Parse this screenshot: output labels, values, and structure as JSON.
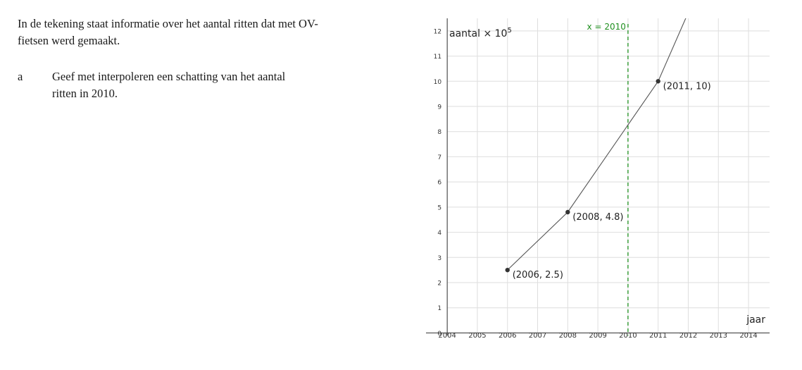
{
  "question": {
    "intro": "In de tekening staat informatie over het aantal ritten dat met OV-fietsen werd gemaakt.",
    "item_letter": "a",
    "item_text": "Geef met interpoleren een schatting van het aantal ritten in 2010."
  },
  "chart_data": {
    "type": "line",
    "title": "",
    "xlabel": "jaar",
    "ylabel_base": "aantal × 10",
    "ylabel_exponent": "5",
    "xlim": [
      2003.95,
      2014.7
    ],
    "ylim": [
      -0.1,
      12.5
    ],
    "grid": true,
    "x_ticks": [
      "2004",
      "2005",
      "2006",
      "2007",
      "2008",
      "2009",
      "2010",
      "2011",
      "2012",
      "2013",
      "2014"
    ],
    "y_ticks": [
      "0",
      "1",
      "2",
      "3",
      "4",
      "5",
      "6",
      "7",
      "8",
      "9",
      "10",
      "11",
      "12"
    ],
    "series": [
      {
        "points": [
          [
            2006,
            2.5
          ],
          [
            2008,
            4.8
          ],
          [
            2011,
            10
          ],
          [
            2012.1,
            13
          ]
        ],
        "color": "#555555"
      }
    ],
    "labeled_points": [
      {
        "x": 2006,
        "y": 2.5,
        "label": "(2006, 2.5)"
      },
      {
        "x": 2008,
        "y": 4.8,
        "label": "(2008, 4.8)"
      },
      {
        "x": 2011,
        "y": 10,
        "label": "(2011, 10)"
      }
    ],
    "reference_line": {
      "x": 2010,
      "label": "x = 2010",
      "color": "#1f8f1f"
    }
  }
}
